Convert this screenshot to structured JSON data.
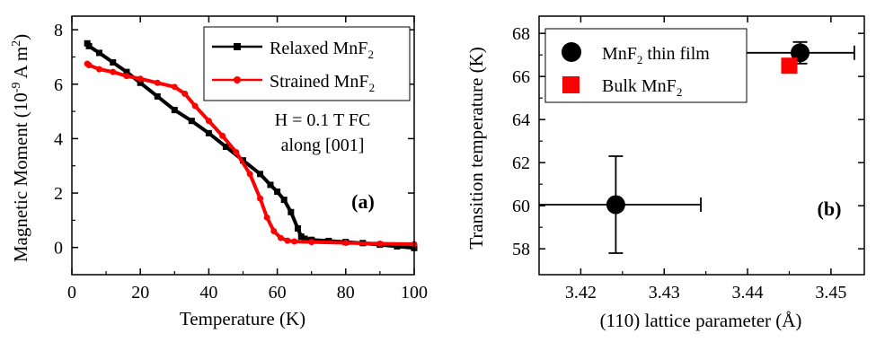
{
  "chart_data": [
    {
      "type": "line",
      "panel_label": "(a)",
      "xlabel": "Temperature (K)",
      "ylabel_main": "Magnetic Moment (10",
      "ylabel_exp1": "-9",
      "ylabel_mid": " A m",
      "ylabel_exp2": "2",
      "ylabel_end": ")",
      "xlim": [
        0,
        100
      ],
      "ylim": [
        -1,
        8.5
      ],
      "xticks": [
        0,
        20,
        40,
        60,
        80,
        100
      ],
      "yticks": [
        0,
        2,
        4,
        6,
        8
      ],
      "annotation_line1": "H = 0.1 T FC",
      "annotation_line2": "along [001]",
      "legend_placement": "top-right",
      "series": [
        {
          "name_main": "Relaxed MnF",
          "name_sub": "2",
          "color": "#000000",
          "marker": "square",
          "x": [
            4.5,
            5,
            8,
            12,
            16,
            20,
            25,
            30,
            35,
            40,
            45,
            50,
            55,
            58,
            60,
            62,
            64,
            66,
            67,
            68,
            70,
            75,
            80,
            85,
            90,
            95,
            100
          ],
          "y": [
            7.5,
            7.4,
            7.15,
            6.8,
            6.45,
            6.05,
            5.55,
            5.05,
            4.65,
            4.2,
            3.7,
            3.2,
            2.7,
            2.3,
            2.05,
            1.75,
            1.3,
            0.7,
            0.4,
            0.32,
            0.28,
            0.24,
            0.2,
            0.16,
            0.1,
            0.04,
            -0.02
          ]
        },
        {
          "name_main": "Strained MnF",
          "name_sub": "2",
          "color": "#ff0000",
          "marker": "circle",
          "x": [
            4.5,
            5,
            8,
            12,
            16,
            20,
            25,
            30,
            33,
            36,
            40,
            44,
            48,
            52,
            55,
            57,
            59,
            61,
            63,
            65,
            70,
            80,
            90,
            100
          ],
          "y": [
            6.75,
            6.7,
            6.55,
            6.45,
            6.3,
            6.2,
            6.05,
            5.9,
            5.65,
            5.2,
            4.65,
            4.1,
            3.5,
            2.7,
            1.8,
            1.1,
            0.6,
            0.35,
            0.25,
            0.22,
            0.2,
            0.17,
            0.14,
            0.12
          ]
        }
      ]
    },
    {
      "type": "scatter",
      "panel_label": "(b)",
      "xlabel": "(110) lattice parameter (Å)",
      "ylabel": "Transition temperature (K)",
      "xlim": [
        3.415,
        3.454
      ],
      "ylim": [
        56.8,
        68.8
      ],
      "xticks": [
        "3.42",
        "3.43",
        "3.44",
        "3.45"
      ],
      "yticks": [
        58,
        60,
        62,
        64,
        66,
        68
      ],
      "legend_placement": "top-left",
      "series": [
        {
          "name_main": "MnF",
          "name_sub": "2",
          "name_end": " thin film",
          "color": "#000000",
          "marker": "circle",
          "points": [
            {
              "x": 3.4242,
              "y": 60.05,
              "xerr": 0.0102,
              "yerr": 2.25
            },
            {
              "x": 3.4463,
              "y": 67.1,
              "xerr": 0.0065,
              "yerr": 0.5
            }
          ]
        },
        {
          "name_main": "Bulk MnF",
          "name_sub": "2",
          "name_end": "",
          "color": "#ff0000",
          "marker": "square",
          "points": [
            {
              "x": 3.445,
              "y": 66.5
            }
          ]
        }
      ]
    }
  ]
}
